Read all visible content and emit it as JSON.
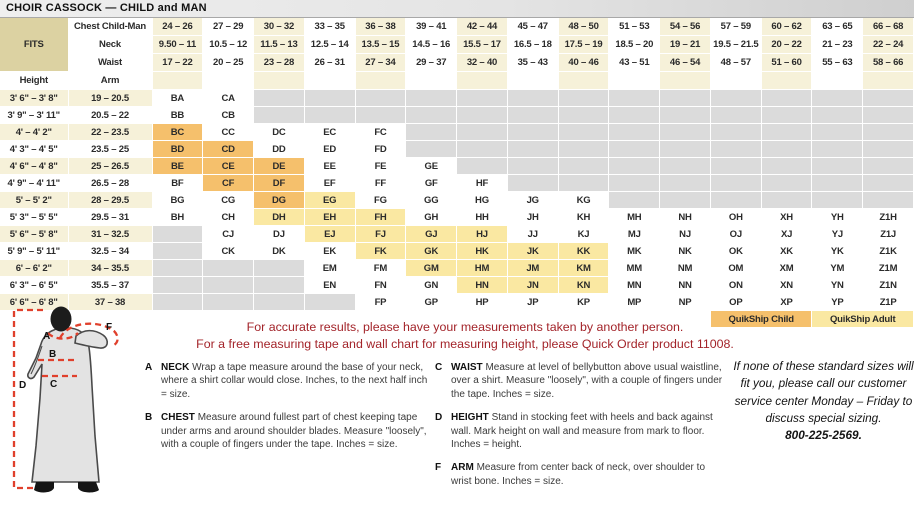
{
  "title": "CHOIR CASSOCK — CHILD and MAN",
  "size_table": {
    "fits_label": "FITS",
    "chest_label": "Chest Child-Man",
    "neck_label": "Neck",
    "waist_label": "Waist",
    "height_label": "Height",
    "arm_label": "Arm",
    "chest_ranges": [
      "24 – 26",
      "27 – 29",
      "30 – 32",
      "33 – 35",
      "36 – 38",
      "39 – 41",
      "42 – 44",
      "45 – 47",
      "48 – 50",
      "51 – 53",
      "54 – 56",
      "57 – 59",
      "60 – 62",
      "63 – 65",
      "66 – 68"
    ],
    "neck_ranges": [
      "9.50 – 11",
      "10.5 – 12",
      "11.5 – 13",
      "12.5 – 14",
      "13.5 – 15",
      "14.5 – 16",
      "15.5 – 17",
      "16.5 – 18",
      "17.5 – 19",
      "18.5 – 20",
      "19 – 21",
      "19.5 – 21.5",
      "20 – 22",
      "21 – 23",
      "22 – 24"
    ],
    "waist_ranges": [
      "17 – 22",
      "20 – 25",
      "23 – 28",
      "26 – 31",
      "27 – 34",
      "29 – 37",
      "32 – 40",
      "35 – 43",
      "40 – 46",
      "43 – 51",
      "46 – 54",
      "48 – 57",
      "51 – 60",
      "55 – 63",
      "58 – 66"
    ],
    "body_rows": [
      {
        "height": "3' 6\" – 3' 8\"",
        "arm": "19 – 20.5",
        "codes": [
          "BA",
          "CA",
          "",
          "",
          "",
          "",
          "",
          "",
          "",
          "",
          "",
          "",
          "",
          "",
          ""
        ]
      },
      {
        "height": "3' 9\" – 3' 11\"",
        "arm": "20.5 – 22",
        "codes": [
          "BB",
          "CB",
          "",
          "",
          "",
          "",
          "",
          "",
          "",
          "",
          "",
          "",
          "",
          "",
          ""
        ]
      },
      {
        "height": "4' – 4' 2\"",
        "arm": "22 – 23.5",
        "codes": [
          "BC",
          "CC",
          "DC",
          "EC",
          "FC",
          "",
          "",
          "",
          "",
          "",
          "",
          "",
          "",
          "",
          ""
        ]
      },
      {
        "height": "4' 3\" – 4' 5\"",
        "arm": "23.5 – 25",
        "codes": [
          "BD",
          "CD",
          "DD",
          "ED",
          "FD",
          "",
          "",
          "",
          "",
          "",
          "",
          "",
          "",
          "",
          ""
        ]
      },
      {
        "height": "4' 6\" – 4' 8\"",
        "arm": "25 – 26.5",
        "codes": [
          "BE",
          "CE",
          "DE",
          "EE",
          "FE",
          "GE",
          "",
          "",
          "",
          "",
          "",
          "",
          "",
          "",
          ""
        ]
      },
      {
        "height": "4' 9\" – 4' 11\"",
        "arm": "26.5 – 28",
        "codes": [
          "BF",
          "CF",
          "DF",
          "EF",
          "FF",
          "GF",
          "HF",
          "",
          "",
          "",
          "",
          "",
          "",
          "",
          ""
        ]
      },
      {
        "height": "5' – 5' 2\"",
        "arm": "28 – 29.5",
        "codes": [
          "BG",
          "CG",
          "DG",
          "EG",
          "FG",
          "GG",
          "HG",
          "JG",
          "KG",
          "",
          "",
          "",
          "",
          "",
          ""
        ]
      },
      {
        "height": "5' 3\" – 5' 5\"",
        "arm": "29.5 – 31",
        "codes": [
          "BH",
          "CH",
          "DH",
          "EH",
          "FH",
          "GH",
          "HH",
          "JH",
          "KH",
          "MH",
          "NH",
          "OH",
          "XH",
          "YH",
          "Z1H"
        ]
      },
      {
        "height": "5' 6\" – 5' 8\"",
        "arm": "31 – 32.5",
        "codes": [
          "",
          "CJ",
          "DJ",
          "EJ",
          "FJ",
          "GJ",
          "HJ",
          "JJ",
          "KJ",
          "MJ",
          "NJ",
          "OJ",
          "XJ",
          "YJ",
          "Z1J"
        ]
      },
      {
        "height": "5' 9\" – 5' 11\"",
        "arm": "32.5 – 34",
        "codes": [
          "",
          "CK",
          "DK",
          "EK",
          "FK",
          "GK",
          "HK",
          "JK",
          "KK",
          "MK",
          "NK",
          "OK",
          "XK",
          "YK",
          "Z1K"
        ]
      },
      {
        "height": "6' – 6' 2\"",
        "arm": "34 – 35.5",
        "codes": [
          "",
          "",
          "",
          "EM",
          "FM",
          "GM",
          "HM",
          "JM",
          "KM",
          "MM",
          "NM",
          "OM",
          "XM",
          "YM",
          "Z1M"
        ]
      },
      {
        "height": "6' 3\" – 6' 5\"",
        "arm": "35.5 – 37",
        "codes": [
          "",
          "",
          "",
          "EN",
          "FN",
          "GN",
          "HN",
          "JN",
          "KN",
          "MN",
          "NN",
          "ON",
          "XN",
          "YN",
          "Z1N"
        ]
      },
      {
        "height": "6' 6\" – 6' 8\"",
        "arm": "37 – 38",
        "codes": [
          "",
          "",
          "",
          "",
          "FP",
          "GP",
          "HP",
          "JP",
          "KP",
          "MP",
          "NP",
          "OP",
          "XP",
          "YP",
          "Z1P"
        ]
      }
    ],
    "quikship_child_codes": [
      "BC",
      "BD",
      "CD",
      "BE",
      "CE",
      "DE",
      "CF",
      "DF",
      "DG"
    ],
    "quikship_adult_codes": [
      "EG",
      "DH",
      "EH",
      "FH",
      "EJ",
      "FJ",
      "GJ",
      "HJ",
      "FK",
      "GK",
      "HK",
      "JK",
      "KK",
      "GM",
      "HM",
      "JM",
      "KM",
      "HN",
      "JN",
      "KN"
    ],
    "quikship_child_label": "QuikShip Child",
    "quikship_adult_label": "QuikShip Adult"
  },
  "intro": {
    "line1": "For accurate results, please have your measurements taken by another person.",
    "line2": "For a free measuring tape and wall chart for measuring height, please Quick Order product 11008."
  },
  "instructions": [
    {
      "letter": "A",
      "term": "NECK",
      "text": "Wrap a tape measure around the base of your neck, where a shirt collar would close. Inches, to the next half inch = size."
    },
    {
      "letter": "B",
      "term": "CHEST",
      "text": "Measure around fullest part of chest keeping tape under arms and around shoulder blades. Measure \"loosely\", with a couple of fingers under the tape. Inches = size."
    },
    {
      "letter": "C",
      "term": "WAIST",
      "text": "Measure at level of bellybutton above usual waistline, over a shirt. Measure \"loosely\", with a couple of fingers under the tape. Inches = size."
    },
    {
      "letter": "D",
      "term": "HEIGHT",
      "text": "Stand in stocking feet with heels and back against wall. Mark height on wall and measure from mark to floor. Inches = height."
    },
    {
      "letter": "F",
      "term": "ARM",
      "text": "Measure from center back of neck, over shoulder to wrist bone. Inches = size."
    }
  ],
  "special_sizing": {
    "text": "If none of these standard sizes will fit you, please call our customer service center Monday – Friday to discuss special sizing.",
    "phone": "800-225-2569."
  },
  "figure": {
    "labels": {
      "a": "A",
      "b": "B",
      "c": "C",
      "d": "D",
      "f": "F"
    }
  },
  "colors": {
    "quikship_child": "#F5C06C",
    "quikship_adult": "#FAE8A2",
    "header_cream": "#F6F1D9",
    "fits_tan": "#DCD2A2",
    "empty_gray": "#DBDBDB",
    "intro_red": "#A3242A",
    "dash_red": "#E0402C"
  }
}
